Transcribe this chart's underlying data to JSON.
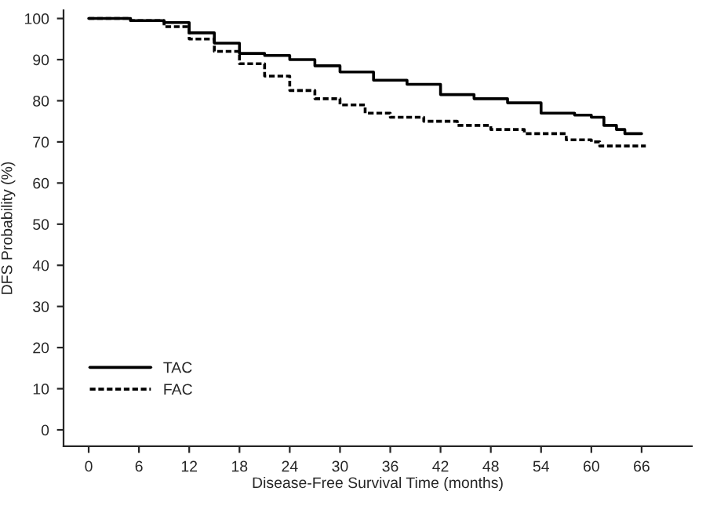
{
  "chart_data": {
    "type": "step",
    "xlabel": "Disease-Free Survival Time (months)",
    "ylabel": "DFS Probability (%)",
    "xlim": [
      -3,
      72
    ],
    "ylim": [
      -4,
      102
    ],
    "xticks": [
      0,
      6,
      12,
      18,
      24,
      30,
      36,
      42,
      48,
      54,
      60,
      66
    ],
    "yticks": [
      0,
      10,
      20,
      30,
      40,
      50,
      60,
      70,
      80,
      90,
      100
    ],
    "grid": false,
    "legend": "bottom left",
    "series": [
      {
        "name": "TAC",
        "color": "#000000",
        "line_style": "solid",
        "x": [
          0,
          5,
          9,
          12,
          15,
          18,
          21,
          24,
          27,
          30,
          34,
          38,
          42,
          46,
          50,
          54,
          58,
          60,
          61.5,
          63,
          64,
          66
        ],
        "values": [
          100,
          99.5,
          99,
          96.5,
          94,
          91.5,
          91,
          90,
          88.5,
          87,
          85,
          84,
          81.5,
          80.5,
          79.5,
          77,
          76.5,
          76,
          74,
          73,
          72,
          72
        ]
      },
      {
        "name": "FAC",
        "color": "#000000",
        "line_style": "dashed",
        "x": [
          0,
          5,
          9,
          12,
          15,
          18,
          21,
          24,
          27,
          30,
          33,
          36,
          40,
          44,
          48,
          52,
          55,
          57,
          60,
          61,
          66.5
        ],
        "values": [
          100,
          99.5,
          98,
          95,
          92,
          89,
          86,
          82.5,
          80.5,
          79,
          77,
          76,
          75,
          74,
          73,
          72,
          72,
          70.5,
          70,
          69,
          69
        ]
      }
    ]
  }
}
